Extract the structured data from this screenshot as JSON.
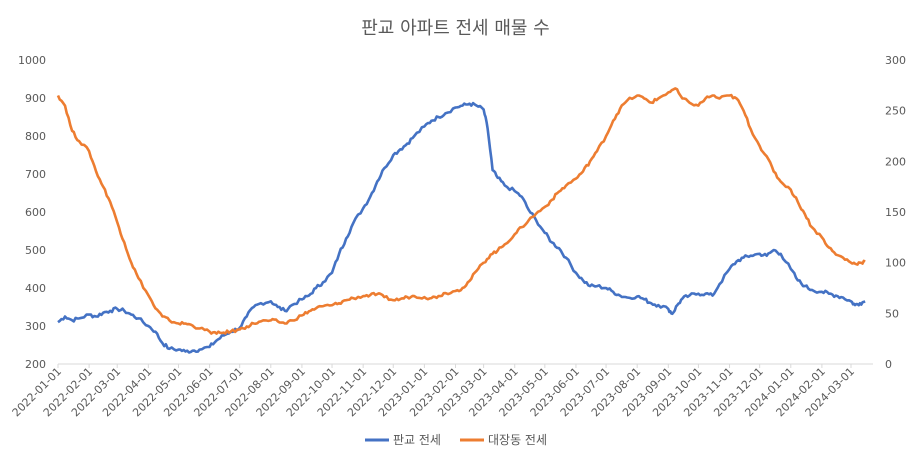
{
  "chart_data": {
    "type": "line",
    "title": "판교 아파트 전세 매물 수",
    "x_ticks": [
      "2022-01-01",
      "2022-02-01",
      "2022-03-01",
      "2022-04-01",
      "2022-05-01",
      "2022-06-01",
      "2022-07-01",
      "2022-08-01",
      "2022-09-01",
      "2022-10-01",
      "2022-11-01",
      "2022-12-01",
      "2023-01-01",
      "2023-02-01",
      "2023-03-01",
      "2023-04-01",
      "2023-05-01",
      "2023-06-01",
      "2023-07-01",
      "2023-08-01",
      "2023-09-01",
      "2023-10-01",
      "2023-11-01",
      "2023-12-01",
      "2024-01-01",
      "2024-02-01",
      "2024-03-01"
    ],
    "y_left": {
      "min": 200,
      "max": 1000,
      "step": 100,
      "ticks": [
        "200",
        "300",
        "400",
        "500",
        "600",
        "700",
        "800",
        "900",
        "1000"
      ]
    },
    "y_right": {
      "min": 0,
      "max": 300,
      "step": 50,
      "ticks": [
        "0",
        "50",
        "100",
        "150",
        "200",
        "250",
        "300"
      ]
    },
    "legend_position": "bottom",
    "grid": false,
    "series": [
      {
        "name": "판교 전세",
        "axis": "left",
        "color": "#4472C4",
        "points": [
          [
            "2022-01-01",
            310
          ],
          [
            "2022-01-08",
            325
          ],
          [
            "2022-01-15",
            315
          ],
          [
            "2022-01-22",
            320
          ],
          [
            "2022-02-01",
            330
          ],
          [
            "2022-02-08",
            325
          ],
          [
            "2022-02-15",
            335
          ],
          [
            "2022-02-22",
            340
          ],
          [
            "2022-03-01",
            345
          ],
          [
            "2022-03-08",
            340
          ],
          [
            "2022-03-15",
            330
          ],
          [
            "2022-03-22",
            320
          ],
          [
            "2022-04-01",
            300
          ],
          [
            "2022-04-08",
            285
          ],
          [
            "2022-04-15",
            255
          ],
          [
            "2022-04-22",
            240
          ],
          [
            "2022-05-01",
            238
          ],
          [
            "2022-05-08",
            233
          ],
          [
            "2022-05-15",
            235
          ],
          [
            "2022-05-22",
            238
          ],
          [
            "2022-06-01",
            245
          ],
          [
            "2022-06-08",
            262
          ],
          [
            "2022-06-15",
            275
          ],
          [
            "2022-06-22",
            285
          ],
          [
            "2022-07-01",
            295
          ],
          [
            "2022-07-08",
            325
          ],
          [
            "2022-07-15",
            350
          ],
          [
            "2022-07-22",
            360
          ],
          [
            "2022-08-01",
            365
          ],
          [
            "2022-08-08",
            350
          ],
          [
            "2022-08-15",
            340
          ],
          [
            "2022-08-22",
            355
          ],
          [
            "2022-09-01",
            370
          ],
          [
            "2022-09-08",
            380
          ],
          [
            "2022-09-15",
            400
          ],
          [
            "2022-09-22",
            415
          ],
          [
            "2022-10-01",
            440
          ],
          [
            "2022-10-08",
            490
          ],
          [
            "2022-10-15",
            530
          ],
          [
            "2022-10-22",
            570
          ],
          [
            "2022-11-01",
            610
          ],
          [
            "2022-11-08",
            640
          ],
          [
            "2022-11-15",
            680
          ],
          [
            "2022-11-22",
            715
          ],
          [
            "2022-12-01",
            750
          ],
          [
            "2022-12-08",
            765
          ],
          [
            "2022-12-15",
            780
          ],
          [
            "2022-12-22",
            800
          ],
          [
            "2023-01-01",
            825
          ],
          [
            "2023-01-08",
            840
          ],
          [
            "2023-01-15",
            850
          ],
          [
            "2023-01-22",
            860
          ],
          [
            "2023-02-01",
            875
          ],
          [
            "2023-02-08",
            880
          ],
          [
            "2023-02-15",
            885
          ],
          [
            "2023-02-22",
            880
          ],
          [
            "2023-03-01",
            870
          ],
          [
            "2023-03-05",
            820
          ],
          [
            "2023-03-10",
            710
          ],
          [
            "2023-03-15",
            690
          ],
          [
            "2023-03-22",
            670
          ],
          [
            "2023-04-01",
            655
          ],
          [
            "2023-04-08",
            640
          ],
          [
            "2023-04-15",
            605
          ],
          [
            "2023-04-22",
            580
          ],
          [
            "2023-05-01",
            545
          ],
          [
            "2023-05-08",
            520
          ],
          [
            "2023-05-15",
            505
          ],
          [
            "2023-05-22",
            480
          ],
          [
            "2023-06-01",
            440
          ],
          [
            "2023-06-08",
            420
          ],
          [
            "2023-06-15",
            405
          ],
          [
            "2023-06-22",
            405
          ],
          [
            "2023-07-01",
            400
          ],
          [
            "2023-07-08",
            390
          ],
          [
            "2023-07-15",
            380
          ],
          [
            "2023-07-22",
            375
          ],
          [
            "2023-08-01",
            378
          ],
          [
            "2023-08-08",
            370
          ],
          [
            "2023-08-15",
            360
          ],
          [
            "2023-08-22",
            355
          ],
          [
            "2023-09-01",
            345
          ],
          [
            "2023-09-05",
            332
          ],
          [
            "2023-09-10",
            355
          ],
          [
            "2023-09-15",
            372
          ],
          [
            "2023-09-22",
            380
          ],
          [
            "2023-10-01",
            385
          ],
          [
            "2023-10-08",
            385
          ],
          [
            "2023-10-15",
            380
          ],
          [
            "2023-10-22",
            410
          ],
          [
            "2023-11-01",
            450
          ],
          [
            "2023-11-08",
            470
          ],
          [
            "2023-11-15",
            480
          ],
          [
            "2023-11-22",
            485
          ],
          [
            "2023-12-01",
            490
          ],
          [
            "2023-12-08",
            485
          ],
          [
            "2023-12-15",
            500
          ],
          [
            "2023-12-22",
            490
          ],
          [
            "2024-01-01",
            450
          ],
          [
            "2024-01-08",
            420
          ],
          [
            "2024-01-15",
            405
          ],
          [
            "2024-01-22",
            395
          ],
          [
            "2024-02-01",
            390
          ],
          [
            "2024-02-08",
            385
          ],
          [
            "2024-02-15",
            380
          ],
          [
            "2024-02-22",
            375
          ],
          [
            "2024-03-01",
            365
          ],
          [
            "2024-03-05",
            355
          ],
          [
            "2024-03-10",
            360
          ],
          [
            "2024-03-15",
            365
          ]
        ]
      },
      {
        "name": "대장동 전세",
        "axis": "right",
        "color": "#ED7D31",
        "points": [
          [
            "2022-01-01",
            265
          ],
          [
            "2022-01-08",
            255
          ],
          [
            "2022-01-15",
            230
          ],
          [
            "2022-01-22",
            220
          ],
          [
            "2022-02-01",
            210
          ],
          [
            "2022-02-08",
            190
          ],
          [
            "2022-02-15",
            175
          ],
          [
            "2022-02-22",
            160
          ],
          [
            "2022-03-01",
            140
          ],
          [
            "2022-03-08",
            120
          ],
          [
            "2022-03-15",
            100
          ],
          [
            "2022-03-22",
            85
          ],
          [
            "2022-04-01",
            68
          ],
          [
            "2022-04-08",
            55
          ],
          [
            "2022-04-15",
            47
          ],
          [
            "2022-04-22",
            43
          ],
          [
            "2022-05-01",
            40
          ],
          [
            "2022-05-08",
            40
          ],
          [
            "2022-05-15",
            38
          ],
          [
            "2022-05-22",
            35
          ],
          [
            "2022-06-01",
            32
          ],
          [
            "2022-06-08",
            30
          ],
          [
            "2022-06-15",
            31
          ],
          [
            "2022-06-22",
            32
          ],
          [
            "2022-07-01",
            34
          ],
          [
            "2022-07-08",
            37
          ],
          [
            "2022-07-15",
            40
          ],
          [
            "2022-07-22",
            42
          ],
          [
            "2022-08-01",
            43
          ],
          [
            "2022-08-08",
            42
          ],
          [
            "2022-08-15",
            40
          ],
          [
            "2022-08-22",
            43
          ],
          [
            "2022-09-01",
            48
          ],
          [
            "2022-09-08",
            52
          ],
          [
            "2022-09-15",
            55
          ],
          [
            "2022-09-22",
            57
          ],
          [
            "2022-10-01",
            58
          ],
          [
            "2022-10-08",
            60
          ],
          [
            "2022-10-15",
            63
          ],
          [
            "2022-10-22",
            65
          ],
          [
            "2022-11-01",
            67
          ],
          [
            "2022-11-08",
            68
          ],
          [
            "2022-11-15",
            69
          ],
          [
            "2022-11-22",
            66
          ],
          [
            "2022-12-01",
            63
          ],
          [
            "2022-12-08",
            64
          ],
          [
            "2022-12-15",
            66
          ],
          [
            "2022-12-22",
            67
          ],
          [
            "2023-01-01",
            66
          ],
          [
            "2023-01-08",
            65
          ],
          [
            "2023-01-15",
            67
          ],
          [
            "2023-01-22",
            70
          ],
          [
            "2023-02-01",
            72
          ],
          [
            "2023-02-08",
            75
          ],
          [
            "2023-02-15",
            82
          ],
          [
            "2023-02-22",
            92
          ],
          [
            "2023-03-01",
            100
          ],
          [
            "2023-03-08",
            108
          ],
          [
            "2023-03-15",
            112
          ],
          [
            "2023-03-22",
            118
          ],
          [
            "2023-04-01",
            128
          ],
          [
            "2023-04-08",
            135
          ],
          [
            "2023-04-15",
            142
          ],
          [
            "2023-04-22",
            148
          ],
          [
            "2023-05-01",
            155
          ],
          [
            "2023-05-08",
            162
          ],
          [
            "2023-05-15",
            170
          ],
          [
            "2023-05-22",
            176
          ],
          [
            "2023-06-01",
            183
          ],
          [
            "2023-06-08",
            190
          ],
          [
            "2023-06-15",
            200
          ],
          [
            "2023-06-22",
            210
          ],
          [
            "2023-07-01",
            225
          ],
          [
            "2023-07-08",
            240
          ],
          [
            "2023-07-15",
            252
          ],
          [
            "2023-07-22",
            260
          ],
          [
            "2023-08-01",
            265
          ],
          [
            "2023-08-08",
            262
          ],
          [
            "2023-08-15",
            258
          ],
          [
            "2023-08-22",
            262
          ],
          [
            "2023-09-01",
            268
          ],
          [
            "2023-09-08",
            272
          ],
          [
            "2023-09-15",
            262
          ],
          [
            "2023-09-22",
            258
          ],
          [
            "2023-10-01",
            255
          ],
          [
            "2023-10-08",
            262
          ],
          [
            "2023-10-15",
            265
          ],
          [
            "2023-10-22",
            262
          ],
          [
            "2023-11-01",
            265
          ],
          [
            "2023-11-08",
            262
          ],
          [
            "2023-11-15",
            250
          ],
          [
            "2023-11-22",
            232
          ],
          [
            "2023-12-01",
            215
          ],
          [
            "2023-12-08",
            205
          ],
          [
            "2023-12-15",
            190
          ],
          [
            "2023-12-22",
            180
          ],
          [
            "2024-01-01",
            172
          ],
          [
            "2024-01-08",
            160
          ],
          [
            "2024-01-15",
            148
          ],
          [
            "2024-01-22",
            135
          ],
          [
            "2024-02-01",
            125
          ],
          [
            "2024-02-08",
            115
          ],
          [
            "2024-02-15",
            108
          ],
          [
            "2024-02-22",
            105
          ],
          [
            "2024-03-01",
            100
          ],
          [
            "2024-03-05",
            99
          ],
          [
            "2024-03-10",
            100
          ],
          [
            "2024-03-15",
            101
          ]
        ]
      }
    ]
  }
}
